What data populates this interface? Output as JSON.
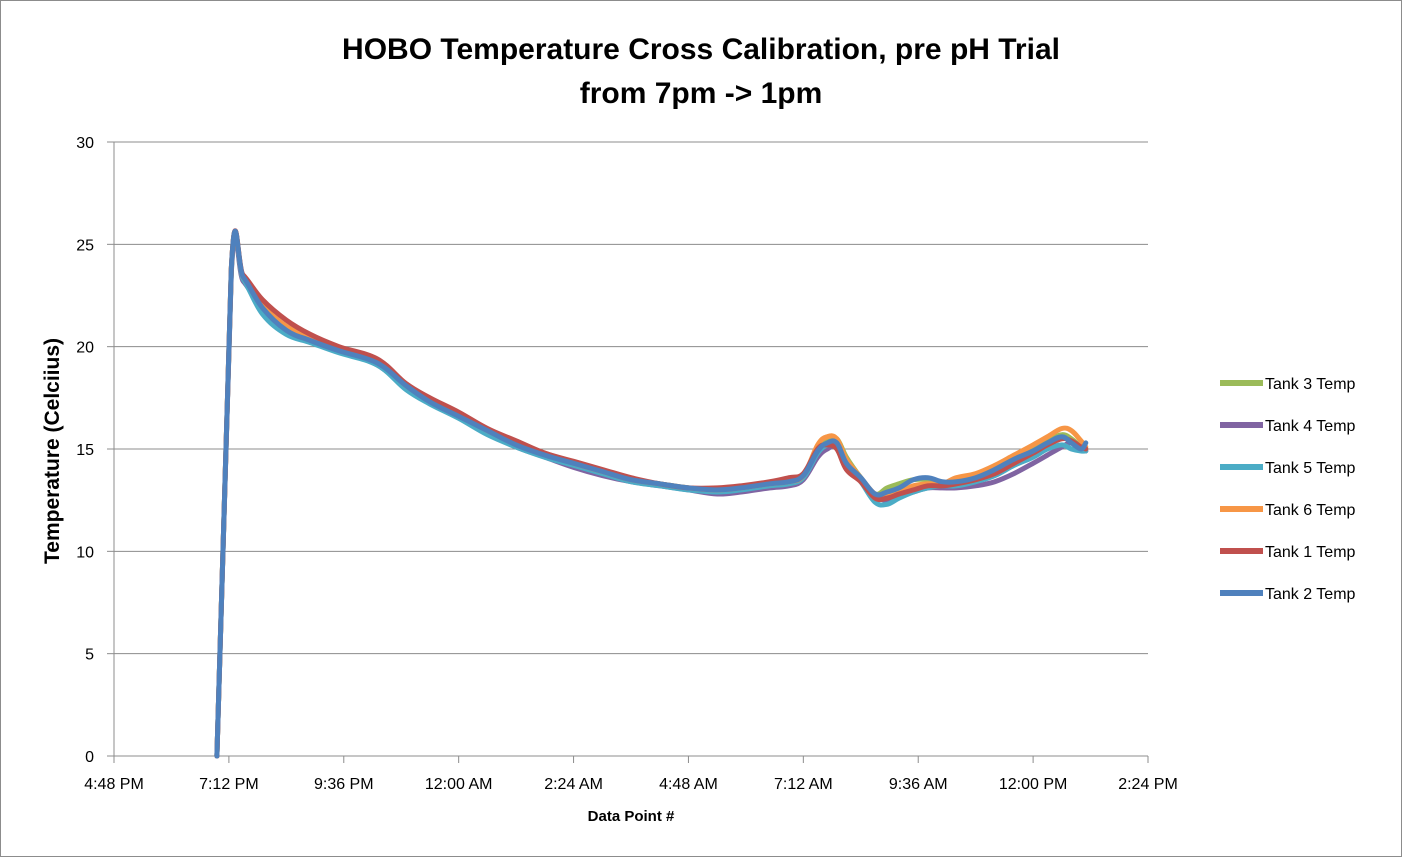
{
  "chart_data": {
    "type": "line",
    "title": [
      "HOBO Temperature Cross Calibration, pre pH Trial",
      "from 7pm -> 1pm"
    ],
    "xlabel": "Data Point #",
    "ylabel": "Temperature (Celciius)",
    "xlim_hours": [
      16.8,
      38.4
    ],
    "x_ticks": [
      {
        "h": 16.8,
        "label": "4:48 PM"
      },
      {
        "h": 19.2,
        "label": "7:12 PM"
      },
      {
        "h": 21.6,
        "label": "9:36 PM"
      },
      {
        "h": 24.0,
        "label": "12:00 AM"
      },
      {
        "h": 26.4,
        "label": "2:24 AM"
      },
      {
        "h": 28.8,
        "label": "4:48 AM"
      },
      {
        "h": 31.2,
        "label": "7:12 AM"
      },
      {
        "h": 33.6,
        "label": "9:36 AM"
      },
      {
        "h": 36.0,
        "label": "12:00 PM"
      },
      {
        "h": 38.4,
        "label": "2:24 PM"
      }
    ],
    "ylim": [
      0,
      30
    ],
    "y_ticks": [
      0,
      5,
      10,
      15,
      20,
      25,
      30
    ],
    "grid": "horizontal",
    "legend_position": "right",
    "series": [
      {
        "name": "Tank 3 Temp",
        "color": "#9bbb59",
        "x": [
          18.95,
          19.25,
          19.5,
          19.9,
          20.4,
          20.9,
          21.5,
          22.3,
          22.9,
          23.4,
          24.0,
          24.6,
          25.2,
          25.8,
          26.4,
          27.0,
          27.6,
          28.2,
          28.8,
          29.4,
          29.9,
          30.5,
          30.9,
          31.2,
          31.5,
          31.7,
          31.9,
          32.1,
          32.4,
          32.7,
          32.95,
          33.2,
          33.5,
          33.8,
          34.1,
          34.4,
          34.8,
          35.2,
          35.6,
          36.0,
          36.3,
          36.6,
          36.8,
          37.0,
          37.1
        ],
        "y": [
          0,
          23.8,
          23.4,
          21.8,
          20.8,
          20.3,
          19.8,
          19.2,
          18.0,
          17.3,
          16.6,
          15.8,
          15.2,
          14.7,
          14.3,
          13.9,
          13.5,
          13.3,
          13.1,
          13.0,
          13.1,
          13.3,
          13.4,
          13.7,
          15.0,
          15.4,
          15.5,
          14.6,
          13.6,
          12.8,
          13.1,
          13.3,
          13.5,
          13.5,
          13.3,
          13.5,
          13.7,
          14.0,
          14.5,
          15.0,
          15.4,
          15.7,
          15.5,
          15.1,
          15.0
        ]
      },
      {
        "name": "Tank 4 Temp",
        "color": "#8064a2",
        "x": [
          18.95,
          19.25,
          19.5,
          19.9,
          20.4,
          20.9,
          21.5,
          22.3,
          22.9,
          23.4,
          24.0,
          24.6,
          25.2,
          25.8,
          26.4,
          27.0,
          27.6,
          28.2,
          28.8,
          29.4,
          29.9,
          30.5,
          30.9,
          31.2,
          31.5,
          31.7,
          31.9,
          32.1,
          32.4,
          32.7,
          32.95,
          33.2,
          33.5,
          33.8,
          34.1,
          34.4,
          34.8,
          35.2,
          35.6,
          36.0,
          36.3,
          36.6,
          36.8,
          37.0,
          37.1
        ],
        "y": [
          0,
          23.6,
          23.2,
          21.9,
          21.0,
          20.4,
          19.8,
          19.1,
          18.0,
          17.3,
          16.6,
          15.8,
          15.1,
          14.6,
          14.1,
          13.7,
          13.4,
          13.2,
          13.0,
          12.8,
          12.9,
          13.1,
          13.2,
          13.5,
          14.6,
          15.0,
          15.1,
          14.2,
          13.5,
          12.7,
          12.5,
          12.7,
          12.9,
          13.1,
          13.1,
          13.1,
          13.2,
          13.4,
          13.8,
          14.3,
          14.7,
          15.1,
          15.3,
          15.0,
          14.9
        ]
      },
      {
        "name": "Tank 5 Temp",
        "color": "#4bacc6",
        "x": [
          18.95,
          19.25,
          19.5,
          19.9,
          20.4,
          20.9,
          21.5,
          22.3,
          22.9,
          23.4,
          24.0,
          24.6,
          25.2,
          25.8,
          26.4,
          27.0,
          27.6,
          28.2,
          28.8,
          29.4,
          29.9,
          30.5,
          30.9,
          31.2,
          31.5,
          31.7,
          31.9,
          32.1,
          32.4,
          32.7,
          32.95,
          33.2,
          33.5,
          33.8,
          34.1,
          34.4,
          34.8,
          35.2,
          35.6,
          36.0,
          36.3,
          36.6,
          36.8,
          37.0,
          37.1
        ],
        "y": [
          0,
          23.7,
          23.3,
          21.6,
          20.6,
          20.2,
          19.7,
          19.1,
          17.9,
          17.2,
          16.5,
          15.7,
          15.1,
          14.6,
          14.2,
          13.8,
          13.4,
          13.2,
          13.0,
          12.9,
          13.0,
          13.2,
          13.3,
          13.6,
          14.8,
          15.2,
          15.3,
          14.2,
          13.4,
          12.4,
          12.3,
          12.6,
          12.9,
          13.1,
          13.2,
          13.2,
          13.4,
          13.7,
          14.2,
          14.6,
          15.0,
          15.2,
          15.0,
          14.9,
          14.9
        ]
      },
      {
        "name": "Tank 6 Temp",
        "color": "#f79646",
        "x": [
          18.95,
          19.25,
          19.5,
          19.9,
          20.4,
          20.9,
          21.5,
          22.3,
          22.9,
          23.4,
          24.0,
          24.6,
          25.2,
          25.8,
          26.4,
          27.0,
          27.6,
          28.2,
          28.8,
          29.4,
          29.9,
          30.5,
          30.9,
          31.2,
          31.5,
          31.7,
          31.9,
          32.1,
          32.4,
          32.7,
          32.95,
          33.2,
          33.5,
          33.8,
          34.1,
          34.4,
          34.8,
          35.2,
          35.6,
          36.0,
          36.3,
          36.6,
          36.8,
          37.0,
          37.1
        ],
        "y": [
          0,
          23.8,
          23.4,
          22.0,
          21.0,
          20.4,
          19.9,
          19.3,
          18.1,
          17.4,
          16.7,
          15.9,
          15.3,
          14.8,
          14.3,
          13.9,
          13.5,
          13.3,
          13.1,
          13.0,
          13.1,
          13.3,
          13.4,
          13.7,
          15.2,
          15.6,
          15.5,
          14.5,
          13.6,
          12.8,
          12.8,
          12.9,
          13.2,
          13.3,
          13.3,
          13.6,
          13.8,
          14.2,
          14.7,
          15.2,
          15.6,
          16.0,
          15.9,
          15.4,
          15.1
        ]
      },
      {
        "name": "Tank 1 Temp",
        "color": "#c0504d",
        "x": [
          18.95,
          19.25,
          19.5,
          19.9,
          20.4,
          20.9,
          21.5,
          22.3,
          22.9,
          23.4,
          24.0,
          24.6,
          25.2,
          25.8,
          26.4,
          27.0,
          27.6,
          28.2,
          28.8,
          29.4,
          29.9,
          30.5,
          30.9,
          31.2,
          31.5,
          31.7,
          31.9,
          32.1,
          32.4,
          32.7,
          32.95,
          33.2,
          33.5,
          33.8,
          34.1,
          34.4,
          34.8,
          35.2,
          35.6,
          36.0,
          36.3,
          36.6,
          36.8,
          37.0,
          37.1
        ],
        "y": [
          0,
          23.8,
          23.5,
          22.3,
          21.3,
          20.6,
          20.0,
          19.4,
          18.2,
          17.5,
          16.8,
          16.0,
          15.4,
          14.8,
          14.4,
          14.0,
          13.6,
          13.3,
          13.1,
          13.1,
          13.2,
          13.4,
          13.6,
          13.8,
          15.0,
          15.2,
          15.0,
          14.0,
          13.4,
          12.6,
          12.6,
          12.8,
          13.0,
          13.2,
          13.2,
          13.3,
          13.5,
          13.8,
          14.3,
          14.8,
          15.2,
          15.5,
          15.4,
          15.1,
          15.0
        ]
      },
      {
        "name": "Tank 2 Temp",
        "color": "#4f81bd",
        "x": [
          18.95,
          19.25,
          19.5,
          19.9,
          20.4,
          20.9,
          21.5,
          22.3,
          22.9,
          23.4,
          24.0,
          24.6,
          25.2,
          25.8,
          26.4,
          27.0,
          27.6,
          28.2,
          28.8,
          29.4,
          29.9,
          30.5,
          30.9,
          31.2,
          31.5,
          31.7,
          31.9,
          32.1,
          32.4,
          32.7,
          32.95,
          33.2,
          33.5,
          33.8,
          34.1,
          34.4,
          34.8,
          35.2,
          35.6,
          36.0,
          36.3,
          36.6,
          36.8,
          37.0,
          37.1
        ],
        "y": [
          0,
          23.8,
          23.4,
          21.9,
          20.8,
          20.3,
          19.8,
          19.2,
          18.1,
          17.3,
          16.6,
          15.9,
          15.2,
          14.7,
          14.3,
          13.9,
          13.5,
          13.3,
          13.1,
          13.0,
          13.1,
          13.3,
          13.4,
          13.7,
          14.9,
          15.3,
          15.3,
          14.3,
          13.6,
          12.8,
          12.9,
          13.1,
          13.5,
          13.6,
          13.4,
          13.4,
          13.6,
          14.0,
          14.5,
          14.9,
          15.3,
          15.6,
          15.3,
          15.0,
          15.3
        ]
      }
    ]
  }
}
